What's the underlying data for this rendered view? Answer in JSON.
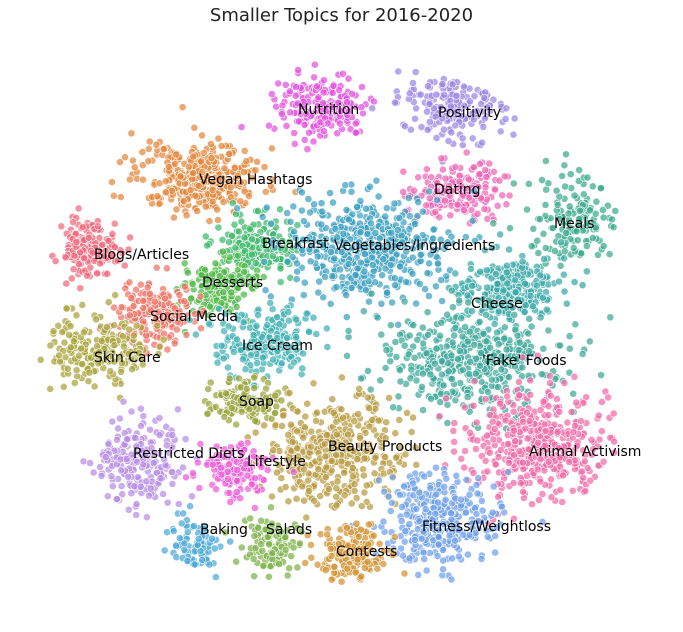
{
  "chart_data": {
    "type": "scatter",
    "title": "Smaller Topics for 2016-2020",
    "xlabel": "",
    "ylabel": "",
    "grid": false,
    "axes_visible": false,
    "legend": "none",
    "clusters": [
      {
        "name": "Nutrition",
        "color": "#e44fe0",
        "center": [
          322,
          108
        ],
        "spread": [
          42,
          30
        ],
        "points": 190
      },
      {
        "name": "Positivity",
        "color": "#9a86e6",
        "center": [
          455,
          104
        ],
        "spread": [
          52,
          32
        ],
        "points": 200
      },
      {
        "name": "Vegan Hashtags",
        "color": "#e5873a",
        "center": [
          200,
          178
        ],
        "spread": [
          55,
          32
        ],
        "points": 360
      },
      {
        "name": "Dating",
        "color": "#f064b4",
        "center": [
          455,
          190
        ],
        "spread": [
          42,
          26
        ],
        "points": 190
      },
      {
        "name": "Meals",
        "color": "#3aaa8c",
        "center": [
          576,
          220
        ],
        "spread": [
          40,
          38
        ],
        "points": 160
      },
      {
        "name": "Breakfast",
        "color": "#3cb86a",
        "center": [
          258,
          245
        ],
        "spread": [
          36,
          26
        ],
        "points": 190
      },
      {
        "name": "Vegetables/Ingredients",
        "color": "#3aa0c0",
        "center": [
          365,
          248
        ],
        "spread": [
          70,
          48
        ],
        "points": 520
      },
      {
        "name": "Blogs/Articles",
        "color": "#f2677a",
        "center": [
          88,
          250
        ],
        "spread": [
          28,
          28
        ],
        "points": 170
      },
      {
        "name": "Desserts",
        "color": "#4cb843",
        "center": [
          220,
          285
        ],
        "spread": [
          32,
          24
        ],
        "points": 160
      },
      {
        "name": "Cheese",
        "color": "#39a7a8",
        "center": [
          505,
          290
        ],
        "spread": [
          45,
          34
        ],
        "points": 260
      },
      {
        "name": "Social Media",
        "color": "#f07264",
        "center": [
          155,
          315
        ],
        "spread": [
          34,
          28
        ],
        "points": 190
      },
      {
        "name": "Skin Care",
        "color": "#a8a43a",
        "center": [
          100,
          350
        ],
        "spread": [
          45,
          32
        ],
        "points": 210
      },
      {
        "name": "Ice Cream",
        "color": "#3fb0b3",
        "center": [
          265,
          340
        ],
        "spread": [
          50,
          32
        ],
        "points": 210
      },
      {
        "name": "'Fake' Foods",
        "color": "#3ba898",
        "center": [
          470,
          360
        ],
        "spread": [
          80,
          45
        ],
        "points": 460
      },
      {
        "name": "Soap",
        "color": "#9aa33c",
        "center": [
          245,
          400
        ],
        "spread": [
          32,
          18
        ],
        "points": 140
      },
      {
        "name": "Beauty Products",
        "color": "#b89a3e",
        "center": [
          335,
          455
        ],
        "spread": [
          62,
          48
        ],
        "points": 400
      },
      {
        "name": "Animal Activism",
        "color": "#f26aa6",
        "center": [
          535,
          445
        ],
        "spread": [
          68,
          48
        ],
        "points": 460
      },
      {
        "name": "Restricted Diets",
        "color": "#b78ce6",
        "center": [
          140,
          460
        ],
        "spread": [
          38,
          38
        ],
        "points": 220
      },
      {
        "name": "Lifestyle",
        "color": "#ee5ad8",
        "center": [
          235,
          468
        ],
        "spread": [
          30,
          22
        ],
        "points": 140
      },
      {
        "name": "Fitness/Weightloss",
        "color": "#6da0ec",
        "center": [
          440,
          520
        ],
        "spread": [
          52,
          42
        ],
        "points": 330
      },
      {
        "name": "Baking",
        "color": "#49a8d8",
        "center": [
          195,
          545
        ],
        "spread": [
          26,
          24
        ],
        "points": 100
      },
      {
        "name": "Salads",
        "color": "#7db24a",
        "center": [
          270,
          545
        ],
        "spread": [
          26,
          24
        ],
        "points": 110
      },
      {
        "name": "Contests",
        "color": "#d29230",
        "center": [
          350,
          555
        ],
        "spread": [
          30,
          28
        ],
        "points": 160
      }
    ]
  }
}
